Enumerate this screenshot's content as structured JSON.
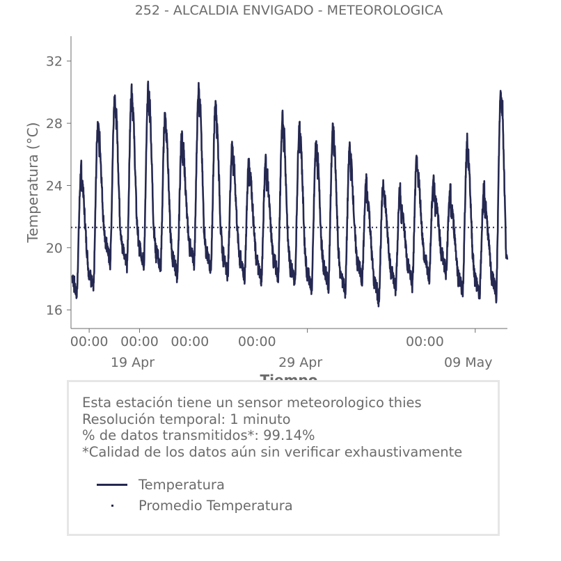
{
  "chart_data": {
    "type": "line",
    "title": "252 - ALCALDIA ENVIGADO - METEOROLOGICA",
    "xlabel": "Tiempo",
    "ylabel": "Temperatura (°C)",
    "x_start": "2021-04-14 22:00",
    "x_end": "2021-05-10 22:00",
    "ylim": [
      14.8,
      33.6
    ],
    "yticks": [
      16,
      20,
      24,
      28,
      32
    ],
    "xticks": [
      {
        "date": "2021-04-16 00:00",
        "label": "00:00",
        "sublabel": ""
      },
      {
        "date": "2021-04-19 00:00",
        "label": "00:00",
        "sublabel": "19 Apr"
      },
      {
        "date": "2021-04-29 00:00",
        "label": "",
        "sublabel": "29 Apr"
      },
      {
        "date": "2021-05-09 00:00",
        "label": "",
        "sublabel": "09 May"
      }
    ],
    "extra_xtick_labels": [
      {
        "date": "2021-04-22 00:00",
        "label": "00:00"
      },
      {
        "date": "2021-04-26 00:00",
        "label": "00:00"
      },
      {
        "date": "2021-05-06 00:00",
        "label": "00:00"
      }
    ],
    "daily_min_max": [
      {
        "date": "2021-04-15",
        "min": 16.8,
        "max": 25.2
      },
      {
        "date": "2021-04-16",
        "min": 17.2,
        "max": 28.3
      },
      {
        "date": "2021-04-17",
        "min": 19.0,
        "max": 30.0
      },
      {
        "date": "2021-04-18",
        "min": 18.7,
        "max": 30.2
      },
      {
        "date": "2021-04-19",
        "min": 18.8,
        "max": 30.5
      },
      {
        "date": "2021-04-20",
        "min": 18.5,
        "max": 28.8
      },
      {
        "date": "2021-04-21",
        "min": 18.0,
        "max": 27.5
      },
      {
        "date": "2021-04-22",
        "min": 18.9,
        "max": 30.4
      },
      {
        "date": "2021-04-23",
        "min": 18.4,
        "max": 29.4
      },
      {
        "date": "2021-04-24",
        "min": 18.2,
        "max": 26.8
      },
      {
        "date": "2021-04-25",
        "min": 18.0,
        "max": 25.9
      },
      {
        "date": "2021-04-26",
        "min": 17.8,
        "max": 25.8
      },
      {
        "date": "2021-04-27",
        "min": 18.0,
        "max": 28.6
      },
      {
        "date": "2021-04-28",
        "min": 17.6,
        "max": 28.0
      },
      {
        "date": "2021-04-29",
        "min": 17.2,
        "max": 27.0
      },
      {
        "date": "2021-04-30",
        "min": 17.4,
        "max": 27.8
      },
      {
        "date": "2021-05-01",
        "min": 17.0,
        "max": 26.7
      },
      {
        "date": "2021-05-02",
        "min": 17.8,
        "max": 24.5
      },
      {
        "date": "2021-05-03",
        "min": 16.6,
        "max": 24.3
      },
      {
        "date": "2021-05-04",
        "min": 17.2,
        "max": 24.0
      },
      {
        "date": "2021-05-05",
        "min": 17.5,
        "max": 26.0
      },
      {
        "date": "2021-05-06",
        "min": 18.0,
        "max": 24.6
      },
      {
        "date": "2021-05-07",
        "min": 18.4,
        "max": 23.8
      },
      {
        "date": "2021-05-08",
        "min": 17.0,
        "max": 27.0
      },
      {
        "date": "2021-05-09",
        "min": 16.8,
        "max": 24.0
      },
      {
        "date": "2021-05-10",
        "min": 16.9,
        "max": 30.3
      }
    ],
    "series": [
      {
        "name": "Temperatura",
        "color": "#252850",
        "style": "solid"
      },
      {
        "name": "Promedio Temperatura",
        "color": "#252850",
        "style": "dotted",
        "value": 21.3
      }
    ],
    "grid": false,
    "legend": "bottom-box"
  },
  "info": {
    "line1": "Esta estación tiene un sensor meteorologico thies",
    "line2": "Resolución temporal: 1 minuto",
    "line3": "% de datos transmitidos*: 99.14%",
    "line4": "*Calidad de los datos aún sin verificar exhaustivamente"
  },
  "legend": {
    "item1": "Temperatura",
    "item2": "Promedio Temperatura"
  },
  "colors": {
    "series": "#252850",
    "text": "#6b6b6b",
    "axis": "#6b6b6b",
    "box_border": "#e6e6e6"
  }
}
